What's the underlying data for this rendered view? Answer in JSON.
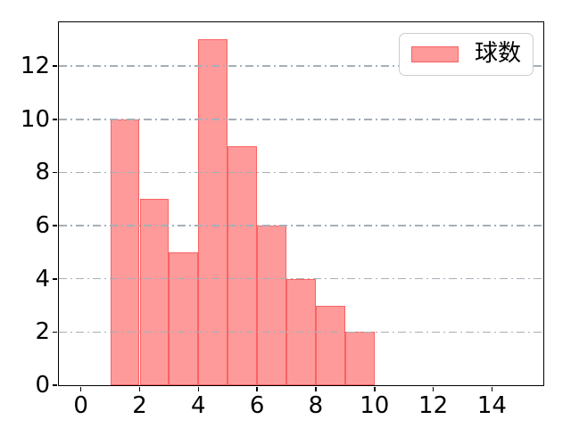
{
  "chart_data": {
    "type": "bar",
    "subtype": "histogram",
    "title": "",
    "xlabel": "",
    "ylabel": "",
    "bin_edges": [
      1,
      2,
      3,
      4,
      5,
      6,
      7,
      8,
      9,
      10
    ],
    "values": [
      10,
      7,
      5,
      13,
      9,
      6,
      4,
      3,
      2
    ],
    "xticks": [
      0,
      2,
      4,
      6,
      8,
      10,
      12,
      14
    ],
    "yticks": [
      0,
      2,
      4,
      6,
      8,
      10,
      12
    ],
    "xlim": [
      -0.75,
      15.75
    ],
    "ylim": [
      0,
      13.65
    ],
    "grid": {
      "axis": "y",
      "linestyle": "dash-dot",
      "color": "#a7afb7",
      "above_bars": true
    },
    "legend": {
      "visible": true,
      "position": "upper right",
      "entries": [
        {
          "label": "球数",
          "fill": "#ff9a9a",
          "edge": "#f96262"
        }
      ]
    },
    "colors": {
      "bar_fill": "#ff9a9a",
      "bar_edge": "#f96262",
      "spine": "#000000",
      "background": "#ffffff",
      "legend_border": "#cccccc"
    }
  }
}
